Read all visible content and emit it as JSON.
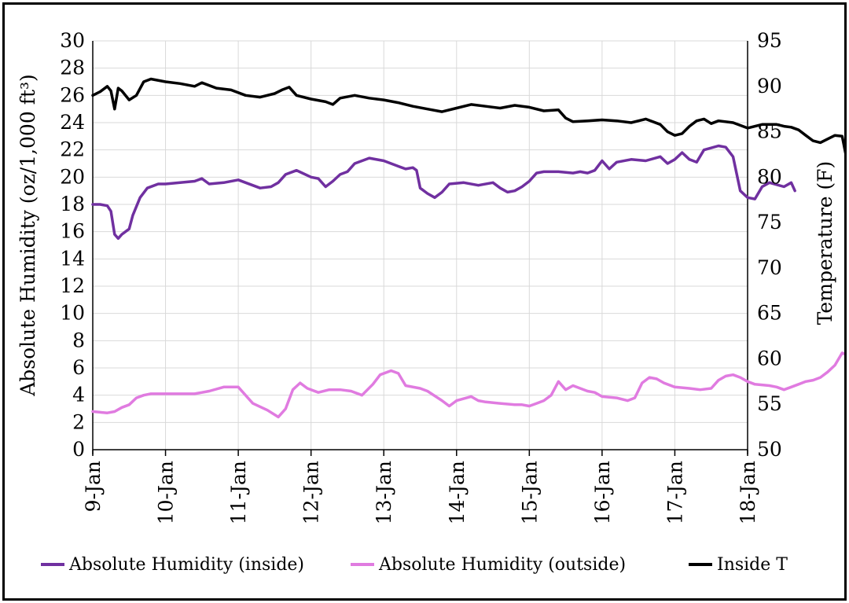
{
  "chart_data": {
    "type": "line",
    "ylabel": "Absolute Humidity (oz/1,000 ft³)",
    "y2label": "Temperature (F)",
    "x_ticks": [
      "9-Jan",
      "10-Jan",
      "11-Jan",
      "12-Jan",
      "13-Jan",
      "14-Jan",
      "15-Jan",
      "16-Jan",
      "17-Jan",
      "18-Jan"
    ],
    "ylim": [
      0,
      30
    ],
    "y_ticks": [
      0,
      2,
      4,
      6,
      8,
      10,
      12,
      14,
      16,
      18,
      20,
      22,
      24,
      26,
      28,
      30
    ],
    "y2lim": [
      50,
      95
    ],
    "y2_ticks": [
      50,
      55,
      60,
      65,
      70,
      75,
      80,
      85,
      90,
      95
    ],
    "grid": true,
    "legend_position": "bottom",
    "series": [
      {
        "name": "Absolute Humidity (inside)",
        "axis": "left",
        "color": "#7030a0",
        "points": [
          [
            0,
            18
          ],
          [
            0.1,
            18
          ],
          [
            0.2,
            17.9
          ],
          [
            0.25,
            17.5
          ],
          [
            0.3,
            15.8
          ],
          [
            0.35,
            15.5
          ],
          [
            0.4,
            15.8
          ],
          [
            0.5,
            16.2
          ],
          [
            0.55,
            17.2
          ],
          [
            0.65,
            18.5
          ],
          [
            0.75,
            19.2
          ],
          [
            0.9,
            19.5
          ],
          [
            1.0,
            19.5
          ],
          [
            1.2,
            19.6
          ],
          [
            1.4,
            19.7
          ],
          [
            1.5,
            19.9
          ],
          [
            1.6,
            19.5
          ],
          [
            1.8,
            19.6
          ],
          [
            2.0,
            19.8
          ],
          [
            2.1,
            19.6
          ],
          [
            2.3,
            19.2
          ],
          [
            2.45,
            19.3
          ],
          [
            2.55,
            19.6
          ],
          [
            2.65,
            20.2
          ],
          [
            2.8,
            20.5
          ],
          [
            3.0,
            20.0
          ],
          [
            3.1,
            19.9
          ],
          [
            3.2,
            19.3
          ],
          [
            3.3,
            19.7
          ],
          [
            3.4,
            20.2
          ],
          [
            3.5,
            20.4
          ],
          [
            3.6,
            21.0
          ],
          [
            3.8,
            21.4
          ],
          [
            4.0,
            21.2
          ],
          [
            4.2,
            20.8
          ],
          [
            4.3,
            20.6
          ],
          [
            4.4,
            20.7
          ],
          [
            4.45,
            20.5
          ],
          [
            4.5,
            19.2
          ],
          [
            4.6,
            18.8
          ],
          [
            4.7,
            18.5
          ],
          [
            4.8,
            18.9
          ],
          [
            4.9,
            19.5
          ],
          [
            5.1,
            19.6
          ],
          [
            5.3,
            19.4
          ],
          [
            5.5,
            19.6
          ],
          [
            5.6,
            19.2
          ],
          [
            5.7,
            18.9
          ],
          [
            5.8,
            19.0
          ],
          [
            5.9,
            19.3
          ],
          [
            6.0,
            19.7
          ],
          [
            6.1,
            20.3
          ],
          [
            6.2,
            20.4
          ],
          [
            6.4,
            20.4
          ],
          [
            6.6,
            20.3
          ],
          [
            6.7,
            20.4
          ],
          [
            6.8,
            20.3
          ],
          [
            6.9,
            20.5
          ],
          [
            7.0,
            21.2
          ],
          [
            7.1,
            20.6
          ],
          [
            7.2,
            21.1
          ],
          [
            7.4,
            21.3
          ],
          [
            7.6,
            21.2
          ],
          [
            7.8,
            21.5
          ],
          [
            7.9,
            21.0
          ],
          [
            8.0,
            21.3
          ],
          [
            8.1,
            21.8
          ],
          [
            8.2,
            21.3
          ],
          [
            8.3,
            21.1
          ],
          [
            8.4,
            22.0
          ],
          [
            8.6,
            22.3
          ],
          [
            8.7,
            22.2
          ],
          [
            8.8,
            21.5
          ],
          [
            8.9,
            19.0
          ],
          [
            9.0,
            18.5
          ],
          [
            9.1,
            18.4
          ],
          [
            9.2,
            19.3
          ],
          [
            9.3,
            19.6
          ],
          [
            9.5,
            19.3
          ],
          [
            9.6,
            19.6
          ],
          [
            9.65,
            19.0
          ]
        ]
      },
      {
        "name": "Absolute Humidity (outside)",
        "axis": "left",
        "color": "#e07be0",
        "points": [
          [
            0,
            2.8
          ],
          [
            0.2,
            2.7
          ],
          [
            0.3,
            2.8
          ],
          [
            0.4,
            3.1
          ],
          [
            0.5,
            3.3
          ],
          [
            0.6,
            3.8
          ],
          [
            0.7,
            4.0
          ],
          [
            0.8,
            4.1
          ],
          [
            1.0,
            4.1
          ],
          [
            1.2,
            4.1
          ],
          [
            1.4,
            4.1
          ],
          [
            1.6,
            4.3
          ],
          [
            1.8,
            4.6
          ],
          [
            2.0,
            4.6
          ],
          [
            2.2,
            3.4
          ],
          [
            2.4,
            2.9
          ],
          [
            2.55,
            2.4
          ],
          [
            2.65,
            3.0
          ],
          [
            2.75,
            4.4
          ],
          [
            2.85,
            4.9
          ],
          [
            2.95,
            4.5
          ],
          [
            3.1,
            4.2
          ],
          [
            3.25,
            4.4
          ],
          [
            3.4,
            4.4
          ],
          [
            3.55,
            4.3
          ],
          [
            3.7,
            4.0
          ],
          [
            3.85,
            4.8
          ],
          [
            3.95,
            5.5
          ],
          [
            4.1,
            5.8
          ],
          [
            4.2,
            5.6
          ],
          [
            4.3,
            4.7
          ],
          [
            4.5,
            4.5
          ],
          [
            4.6,
            4.3
          ],
          [
            4.8,
            3.6
          ],
          [
            4.9,
            3.2
          ],
          [
            5.0,
            3.6
          ],
          [
            5.2,
            3.9
          ],
          [
            5.3,
            3.6
          ],
          [
            5.4,
            3.5
          ],
          [
            5.6,
            3.4
          ],
          [
            5.8,
            3.3
          ],
          [
            5.9,
            3.3
          ],
          [
            6.0,
            3.2
          ],
          [
            6.1,
            3.4
          ],
          [
            6.2,
            3.6
          ],
          [
            6.3,
            4.0
          ],
          [
            6.4,
            5.0
          ],
          [
            6.5,
            4.4
          ],
          [
            6.6,
            4.7
          ],
          [
            6.7,
            4.5
          ],
          [
            6.8,
            4.3
          ],
          [
            6.9,
            4.2
          ],
          [
            7.0,
            3.9
          ],
          [
            7.2,
            3.8
          ],
          [
            7.35,
            3.6
          ],
          [
            7.45,
            3.8
          ],
          [
            7.55,
            4.9
          ],
          [
            7.65,
            5.3
          ],
          [
            7.75,
            5.2
          ],
          [
            7.85,
            4.9
          ],
          [
            8.0,
            4.6
          ],
          [
            8.2,
            4.5
          ],
          [
            8.35,
            4.4
          ],
          [
            8.5,
            4.5
          ],
          [
            8.6,
            5.1
          ],
          [
            8.7,
            5.4
          ],
          [
            8.8,
            5.5
          ],
          [
            8.9,
            5.3
          ],
          [
            9.0,
            5.0
          ],
          [
            9.1,
            4.8
          ],
          [
            9.3,
            4.7
          ],
          [
            9.4,
            4.6
          ],
          [
            9.5,
            4.4
          ],
          [
            9.6,
            4.6
          ],
          [
            9.7,
            4.8
          ],
          [
            9.8,
            5.0
          ],
          [
            9.9,
            5.1
          ],
          [
            10.0,
            5.3
          ],
          [
            10.1,
            5.7
          ],
          [
            10.2,
            6.2
          ],
          [
            10.3,
            7.1
          ],
          [
            10.35,
            7.0
          ]
        ]
      },
      {
        "name": "Inside T",
        "axis": "right",
        "color": "#000000",
        "points": [
          [
            0,
            89
          ],
          [
            0.1,
            89.4
          ],
          [
            0.2,
            90
          ],
          [
            0.25,
            89.5
          ],
          [
            0.3,
            87.5
          ],
          [
            0.35,
            89.8
          ],
          [
            0.4,
            89.5
          ],
          [
            0.5,
            88.5
          ],
          [
            0.6,
            89
          ],
          [
            0.7,
            90.5
          ],
          [
            0.8,
            90.8
          ],
          [
            1.0,
            90.5
          ],
          [
            1.2,
            90.3
          ],
          [
            1.4,
            90
          ],
          [
            1.5,
            90.4
          ],
          [
            1.7,
            89.8
          ],
          [
            1.9,
            89.6
          ],
          [
            2.1,
            89
          ],
          [
            2.3,
            88.8
          ],
          [
            2.5,
            89.2
          ],
          [
            2.6,
            89.6
          ],
          [
            2.7,
            89.9
          ],
          [
            2.8,
            89
          ],
          [
            3.0,
            88.6
          ],
          [
            3.2,
            88.3
          ],
          [
            3.3,
            88
          ],
          [
            3.4,
            88.7
          ],
          [
            3.6,
            89
          ],
          [
            3.8,
            88.7
          ],
          [
            4.0,
            88.5
          ],
          [
            4.2,
            88.2
          ],
          [
            4.4,
            87.8
          ],
          [
            4.6,
            87.5
          ],
          [
            4.8,
            87.2
          ],
          [
            5.0,
            87.6
          ],
          [
            5.2,
            88
          ],
          [
            5.4,
            87.8
          ],
          [
            5.6,
            87.6
          ],
          [
            5.8,
            87.9
          ],
          [
            6.0,
            87.7
          ],
          [
            6.2,
            87.3
          ],
          [
            6.4,
            87.4
          ],
          [
            6.5,
            86.5
          ],
          [
            6.6,
            86.1
          ],
          [
            6.8,
            86.2
          ],
          [
            7.0,
            86.3
          ],
          [
            7.2,
            86.2
          ],
          [
            7.4,
            86
          ],
          [
            7.6,
            86.4
          ],
          [
            7.8,
            85.8
          ],
          [
            7.9,
            85.0
          ],
          [
            8.0,
            84.6
          ],
          [
            8.1,
            84.8
          ],
          [
            8.2,
            85.6
          ],
          [
            8.3,
            86.2
          ],
          [
            8.4,
            86.4
          ],
          [
            8.5,
            85.9
          ],
          [
            8.6,
            86.2
          ],
          [
            8.8,
            86
          ],
          [
            9.0,
            85.4
          ],
          [
            9.2,
            85.8
          ],
          [
            9.4,
            85.8
          ],
          [
            9.5,
            85.6
          ],
          [
            9.6,
            85.5
          ],
          [
            9.7,
            85.2
          ],
          [
            9.8,
            84.6
          ],
          [
            9.9,
            84
          ],
          [
            10.0,
            83.8
          ],
          [
            10.1,
            84.2
          ],
          [
            10.2,
            84.6
          ],
          [
            10.3,
            84.5
          ],
          [
            10.35,
            82.5
          ],
          [
            10.4,
            80.5
          ]
        ]
      }
    ]
  }
}
